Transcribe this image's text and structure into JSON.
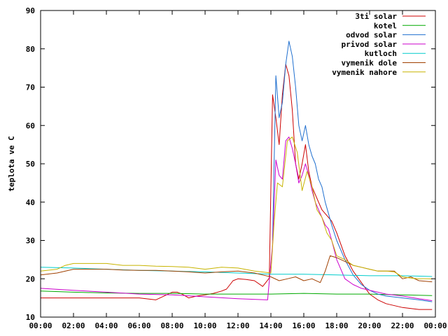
{
  "chart_data": {
    "type": "line",
    "ylabel": "teplota ve C",
    "xlim": [
      0,
      24
    ],
    "ylim": [
      10,
      90
    ],
    "x_ticks": [
      0,
      2,
      4,
      6,
      8,
      10,
      12,
      14,
      16,
      18,
      20,
      22,
      24
    ],
    "x_tick_labels": [
      "00:00",
      "02:00",
      "04:00",
      "06:00",
      "08:00",
      "10:00",
      "12:00",
      "14:00",
      "16:00",
      "18:00",
      "20:00",
      "22:00",
      "00:00"
    ],
    "y_ticks": [
      10,
      20,
      30,
      40,
      50,
      60,
      70,
      80,
      90
    ],
    "grid": false,
    "legend_position": "top-right",
    "series": [
      {
        "name": "3ti solar",
        "color": "#cc0000",
        "x": [
          0,
          1,
          2,
          3,
          4,
          5,
          6,
          7,
          7.5,
          8,
          8.3,
          8.6,
          9,
          9.5,
          10,
          10.5,
          11,
          11.3,
          11.7,
          12,
          12.5,
          13,
          13.5,
          13.9,
          14.1,
          14.3,
          14.5,
          14.7,
          14.9,
          15.1,
          15.3,
          15.5,
          15.7,
          15.9,
          16.1,
          16.3,
          16.5,
          16.7,
          16.9,
          17.1,
          17.3,
          17.5,
          17.7,
          18,
          18.5,
          19,
          19.5,
          20,
          20.5,
          21,
          22,
          23,
          23.8
        ],
        "y": [
          15,
          15,
          15,
          15,
          15,
          15,
          15,
          14.5,
          15.5,
          16.5,
          16.5,
          16,
          15,
          15.5,
          15.8,
          16.2,
          16.8,
          17.3,
          19.5,
          20,
          19.8,
          19.5,
          18,
          20.2,
          68,
          62,
          55,
          68,
          76,
          73,
          64,
          50,
          46,
          50,
          55,
          48,
          44,
          42,
          40,
          38,
          37,
          36,
          35,
          32,
          26,
          22,
          19,
          16,
          14.5,
          13.5,
          12.5,
          12,
          12
        ]
      },
      {
        "name": "kotel",
        "color": "#00aa00",
        "x": [
          0,
          2,
          4,
          6,
          8,
          10,
          12,
          14,
          16,
          18,
          20,
          22,
          23.8
        ],
        "y": [
          16.8,
          16.5,
          16.3,
          16.2,
          16.2,
          16,
          16,
          16,
          16.2,
          16,
          16,
          15.8,
          15.6
        ]
      },
      {
        "name": "odvod solar",
        "color": "#1f6fcf",
        "x": [
          14.1,
          14.3,
          14.5,
          14.7,
          14.9,
          15.1,
          15.3,
          15.5,
          15.7,
          15.9,
          16.1,
          16.3,
          16.5,
          16.7,
          16.9,
          17.1,
          17.3,
          17.5,
          17.7,
          18,
          18.5,
          19,
          19.5,
          20,
          20.5,
          21,
          22,
          23,
          23.8
        ],
        "y": [
          30,
          73,
          62,
          66,
          76,
          82,
          78,
          70,
          60,
          56,
          60,
          55,
          52,
          50,
          46,
          44,
          40,
          37,
          34,
          30,
          25,
          21,
          18.5,
          17,
          16,
          15.5,
          15,
          14.5,
          14
        ]
      },
      {
        "name": "privod solar",
        "color": "#cc00cc",
        "x": [
          0,
          2,
          4,
          6,
          8,
          10,
          12,
          13.8,
          14.1,
          14.3,
          14.5,
          14.7,
          14.9,
          15.1,
          15.3,
          15.5,
          15.7,
          15.9,
          16.1,
          16.3,
          16.5,
          16.7,
          16.9,
          17.1,
          17.3,
          17.5,
          17.7,
          18,
          18.5,
          19,
          19.5,
          20,
          20.5,
          21,
          22,
          23,
          23.8
        ],
        "y": [
          17.5,
          17,
          16.5,
          16,
          15.8,
          15.3,
          14.8,
          14.5,
          29,
          51,
          47,
          46,
          56,
          57,
          54,
          50,
          45,
          47,
          50,
          47,
          43,
          40,
          38,
          36,
          34,
          33,
          30,
          25,
          20,
          18.5,
          17.5,
          17,
          16.5,
          16,
          15.5,
          14.8,
          14.3
        ]
      },
      {
        "name": "kutloch",
        "color": "#00cccc",
        "x": [
          0,
          2,
          4,
          6,
          8,
          10,
          12,
          14,
          16,
          18,
          20,
          22,
          23.8
        ],
        "y": [
          23,
          22.8,
          22.5,
          22.2,
          22,
          21.8,
          21.5,
          21.2,
          21.2,
          21,
          20.8,
          20.8,
          20.6
        ]
      },
      {
        "name": "vymenik dole",
        "color": "#a04000",
        "x": [
          0,
          1,
          2,
          3,
          4,
          5,
          6,
          7,
          8,
          9,
          10,
          11,
          12,
          13,
          14,
          14.5,
          15,
          15.5,
          16,
          16.5,
          17,
          17.3,
          17.6,
          18,
          18.5,
          19,
          19.5,
          20,
          20.5,
          21,
          21.5,
          22,
          22.5,
          23,
          23.8
        ],
        "y": [
          21,
          21.5,
          22.5,
          22.5,
          22.5,
          22.3,
          22.2,
          22.2,
          22,
          21.8,
          21.5,
          21.8,
          22,
          21.5,
          20.5,
          19.5,
          20,
          20.5,
          19.5,
          20,
          19,
          22,
          26,
          25.5,
          24.5,
          23.5,
          23,
          22.5,
          22,
          22,
          22,
          20,
          20.5,
          19.5,
          19.2
        ]
      },
      {
        "name": "vymenik nahore",
        "color": "#c8b400",
        "x": [
          0,
          1,
          1.5,
          2,
          3,
          4,
          5,
          6,
          7,
          8,
          9,
          10,
          11,
          12,
          13,
          14,
          14.2,
          14.4,
          14.7,
          15,
          15.3,
          15.6,
          15.9,
          16.2,
          16.5,
          16.8,
          17.1,
          17.4,
          17.7,
          18,
          18.5,
          19,
          19.5,
          20,
          20.5,
          21,
          21.5,
          22,
          22.5,
          23,
          23.8
        ],
        "y": [
          22,
          22.5,
          23.5,
          24,
          24,
          24,
          23.5,
          23.5,
          23.3,
          23.2,
          23,
          22.5,
          23,
          22.8,
          22,
          21.5,
          35,
          45,
          44,
          56,
          57,
          53,
          43,
          48,
          44,
          38,
          36,
          32,
          30,
          26,
          25,
          23.5,
          23,
          22.5,
          22,
          22,
          21.8,
          20.5,
          20.2,
          20,
          20
        ]
      }
    ]
  }
}
